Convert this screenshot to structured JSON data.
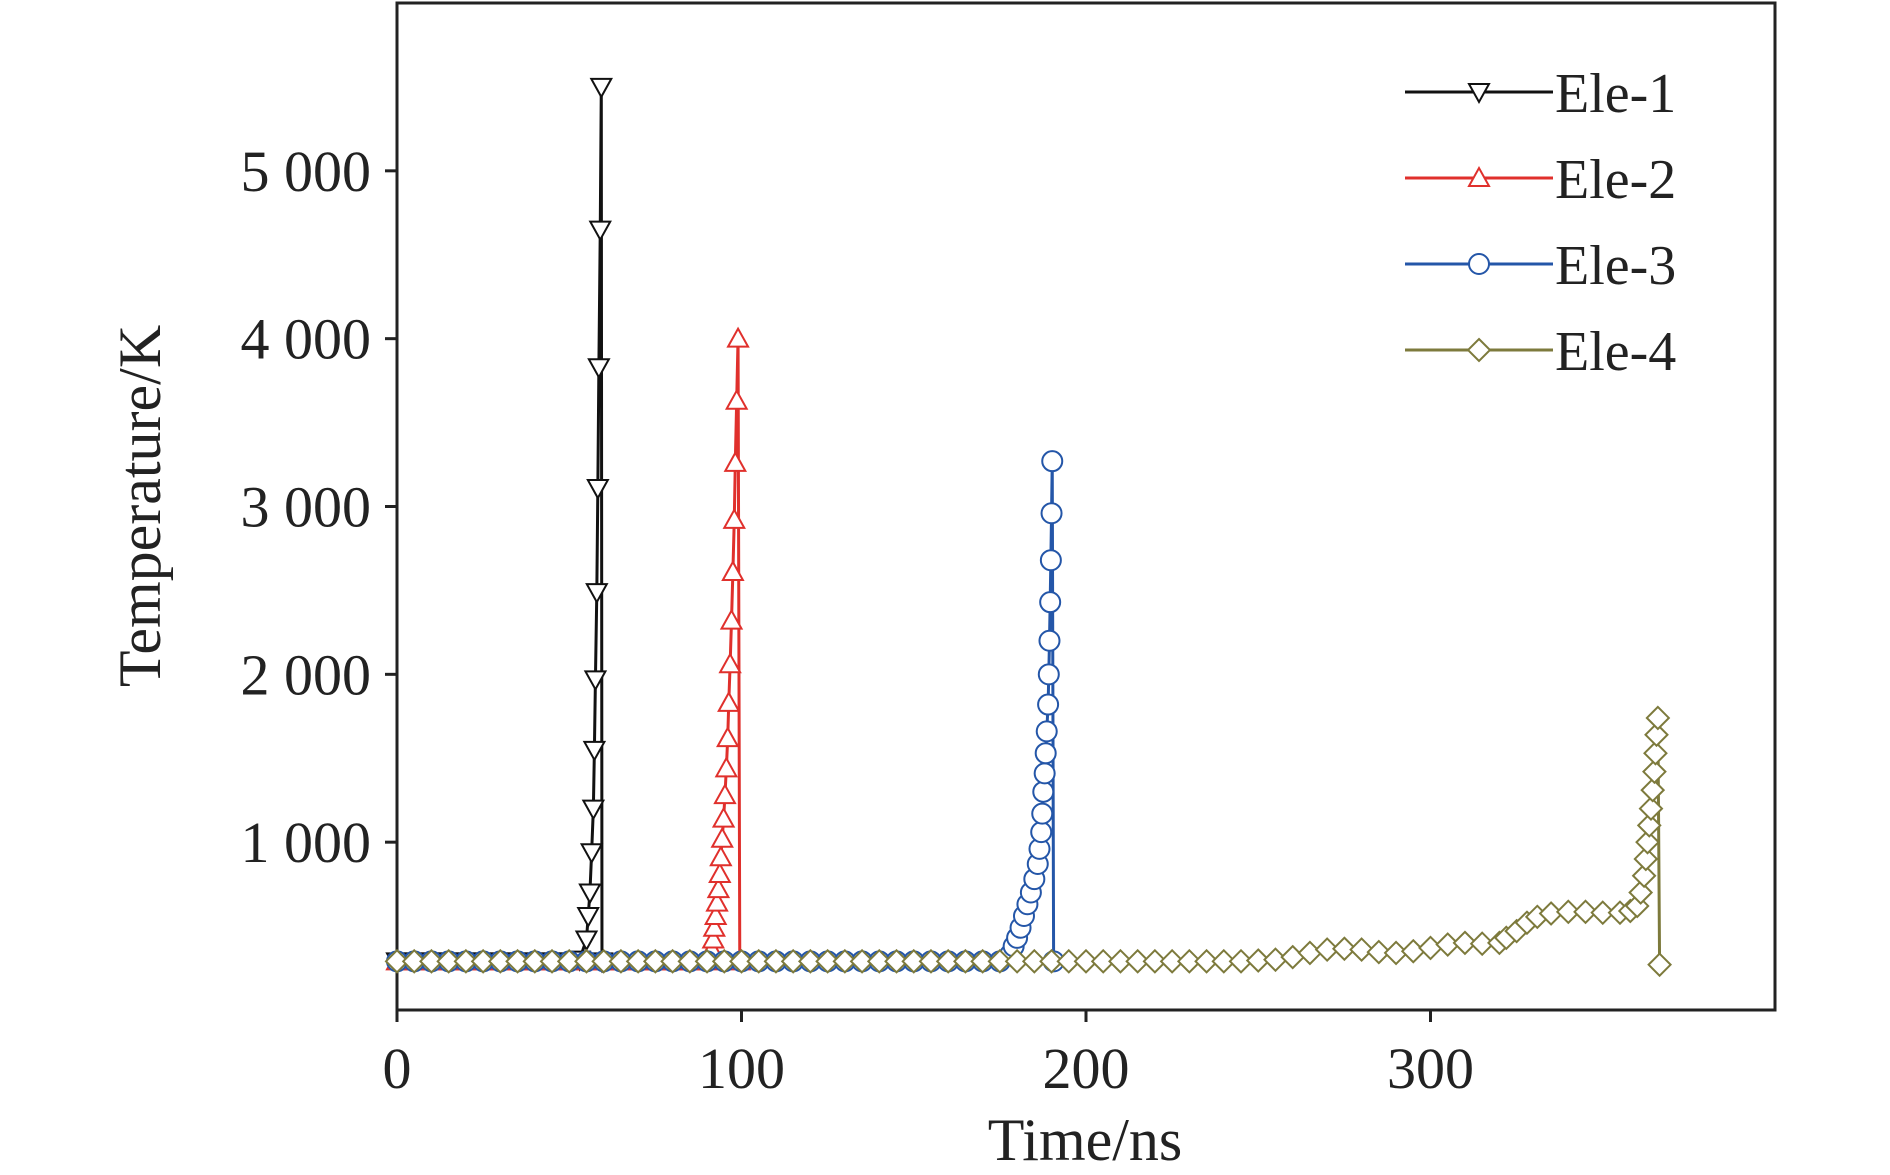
{
  "chart_data": {
    "type": "line",
    "xlabel": "Time/ns",
    "ylabel": "Temperature/K",
    "xlim": [
      0,
      400
    ],
    "ylim": [
      0,
      6000
    ],
    "xticks": [
      0,
      100,
      200,
      300
    ],
    "yticks": [
      {
        "value": 1000,
        "label": "1 000"
      },
      {
        "value": 2000,
        "label": "2 000"
      },
      {
        "value": 3000,
        "label": "3 000"
      },
      {
        "value": 4000,
        "label": "4 000"
      },
      {
        "value": 5000,
        "label": "5 000"
      }
    ],
    "legend": "upper right",
    "series": [
      {
        "name": "Ele-1",
        "color": "#111111",
        "marker": "triangle-down",
        "x": [
          0,
          5,
          10,
          15,
          20,
          25,
          30,
          35,
          40,
          45,
          50,
          53,
          55,
          55.5,
          56,
          56.5,
          57,
          57.3,
          57.6,
          58,
          58.3,
          58.6,
          59,
          59.3,
          59.5
        ],
        "values": [
          290,
          290,
          290,
          290,
          290,
          290,
          290,
          290,
          290,
          290,
          290,
          300,
          420,
          560,
          700,
          940,
          1200,
          1550,
          1970,
          2490,
          3110,
          3830,
          4650,
          5500,
          290
        ]
      },
      {
        "name": "Ele-2",
        "color": "#e0302c",
        "marker": "triangle-up",
        "x": [
          0,
          5,
          10,
          15,
          20,
          25,
          30,
          35,
          40,
          45,
          50,
          55,
          60,
          65,
          70,
          75,
          80,
          85,
          90,
          91.0,
          91.4,
          91.8,
          92.1,
          92.5,
          92.9,
          93.3,
          93.7,
          94.0,
          94.4,
          94.8,
          95.2,
          95.6,
          96.0,
          96.3,
          96.7,
          97.1,
          97.5,
          97.9,
          98.2,
          98.6,
          99.0,
          99.5
        ],
        "values": [
          290,
          290,
          290,
          290,
          290,
          290,
          290,
          290,
          290,
          290,
          290,
          290,
          290,
          290,
          290,
          290,
          290,
          290,
          290,
          310,
          360,
          420,
          490,
          560,
          640,
          720,
          810,
          910,
          1020,
          1140,
          1280,
          1440,
          1620,
          1830,
          2060,
          2320,
          2610,
          2920,
          3260,
          3630,
          4000,
          290
        ]
      },
      {
        "name": "Ele-3",
        "color": "#2456a8",
        "marker": "circle",
        "x": [
          0,
          5,
          10,
          15,
          20,
          25,
          30,
          35,
          40,
          45,
          50,
          55,
          60,
          65,
          70,
          75,
          80,
          85,
          90,
          95,
          100,
          105,
          110,
          115,
          120,
          125,
          130,
          135,
          140,
          145,
          150,
          155,
          160,
          165,
          170,
          175,
          178,
          179,
          180,
          181,
          182,
          183,
          184,
          185,
          186,
          186.5,
          187,
          187.3,
          187.6,
          188,
          188.3,
          188.6,
          189,
          189.2,
          189.4,
          189.6,
          189.8,
          190,
          190.2,
          190.6
        ],
        "values": [
          290,
          290,
          290,
          290,
          290,
          290,
          290,
          290,
          290,
          290,
          290,
          290,
          290,
          290,
          290,
          290,
          290,
          290,
          290,
          290,
          290,
          290,
          290,
          290,
          290,
          290,
          290,
          290,
          290,
          290,
          290,
          290,
          290,
          290,
          290,
          290,
          330,
          380,
          430,
          490,
          560,
          630,
          700,
          780,
          870,
          960,
          1060,
          1170,
          1300,
          1410,
          1530,
          1660,
          1820,
          2000,
          2200,
          2430,
          2680,
          2960,
          3270,
          290
        ]
      },
      {
        "name": "Ele-4",
        "color": "#7d7a3c",
        "marker": "diamond",
        "x": [
          0,
          5,
          10,
          15,
          20,
          25,
          30,
          35,
          40,
          45,
          50,
          55,
          60,
          65,
          70,
          75,
          80,
          85,
          90,
          95,
          100,
          105,
          110,
          115,
          120,
          125,
          130,
          135,
          140,
          145,
          150,
          155,
          160,
          165,
          170,
          175,
          180,
          185,
          190,
          195,
          200,
          205,
          210,
          215,
          220,
          225,
          230,
          235,
          240,
          245,
          250,
          255,
          260,
          265,
          270,
          275,
          280,
          285,
          290,
          295,
          300,
          305,
          310,
          315,
          320,
          322,
          325,
          328,
          331,
          335,
          340,
          345,
          350,
          355,
          358,
          360,
          361,
          362,
          362.5,
          363,
          363.5,
          364,
          364.5,
          365,
          365.3,
          365.6,
          366,
          366.5
        ],
        "values": [
          290,
          290,
          290,
          290,
          290,
          290,
          290,
          290,
          290,
          290,
          290,
          290,
          290,
          290,
          290,
          290,
          290,
          290,
          290,
          290,
          290,
          290,
          290,
          290,
          290,
          290,
          290,
          290,
          290,
          290,
          290,
          290,
          290,
          290,
          290,
          290,
          290,
          290,
          290,
          290,
          290,
          290,
          290,
          290,
          290,
          290,
          290,
          290,
          290,
          290,
          295,
          300,
          315,
          340,
          360,
          365,
          360,
          345,
          340,
          350,
          370,
          390,
          400,
          395,
          400,
          430,
          470,
          520,
          555,
          575,
          585,
          585,
          580,
          580,
          590,
          620,
          700,
          800,
          900,
          1000,
          1100,
          1200,
          1310,
          1420,
          1530,
          1640,
          1740,
          270
        ]
      }
    ]
  }
}
